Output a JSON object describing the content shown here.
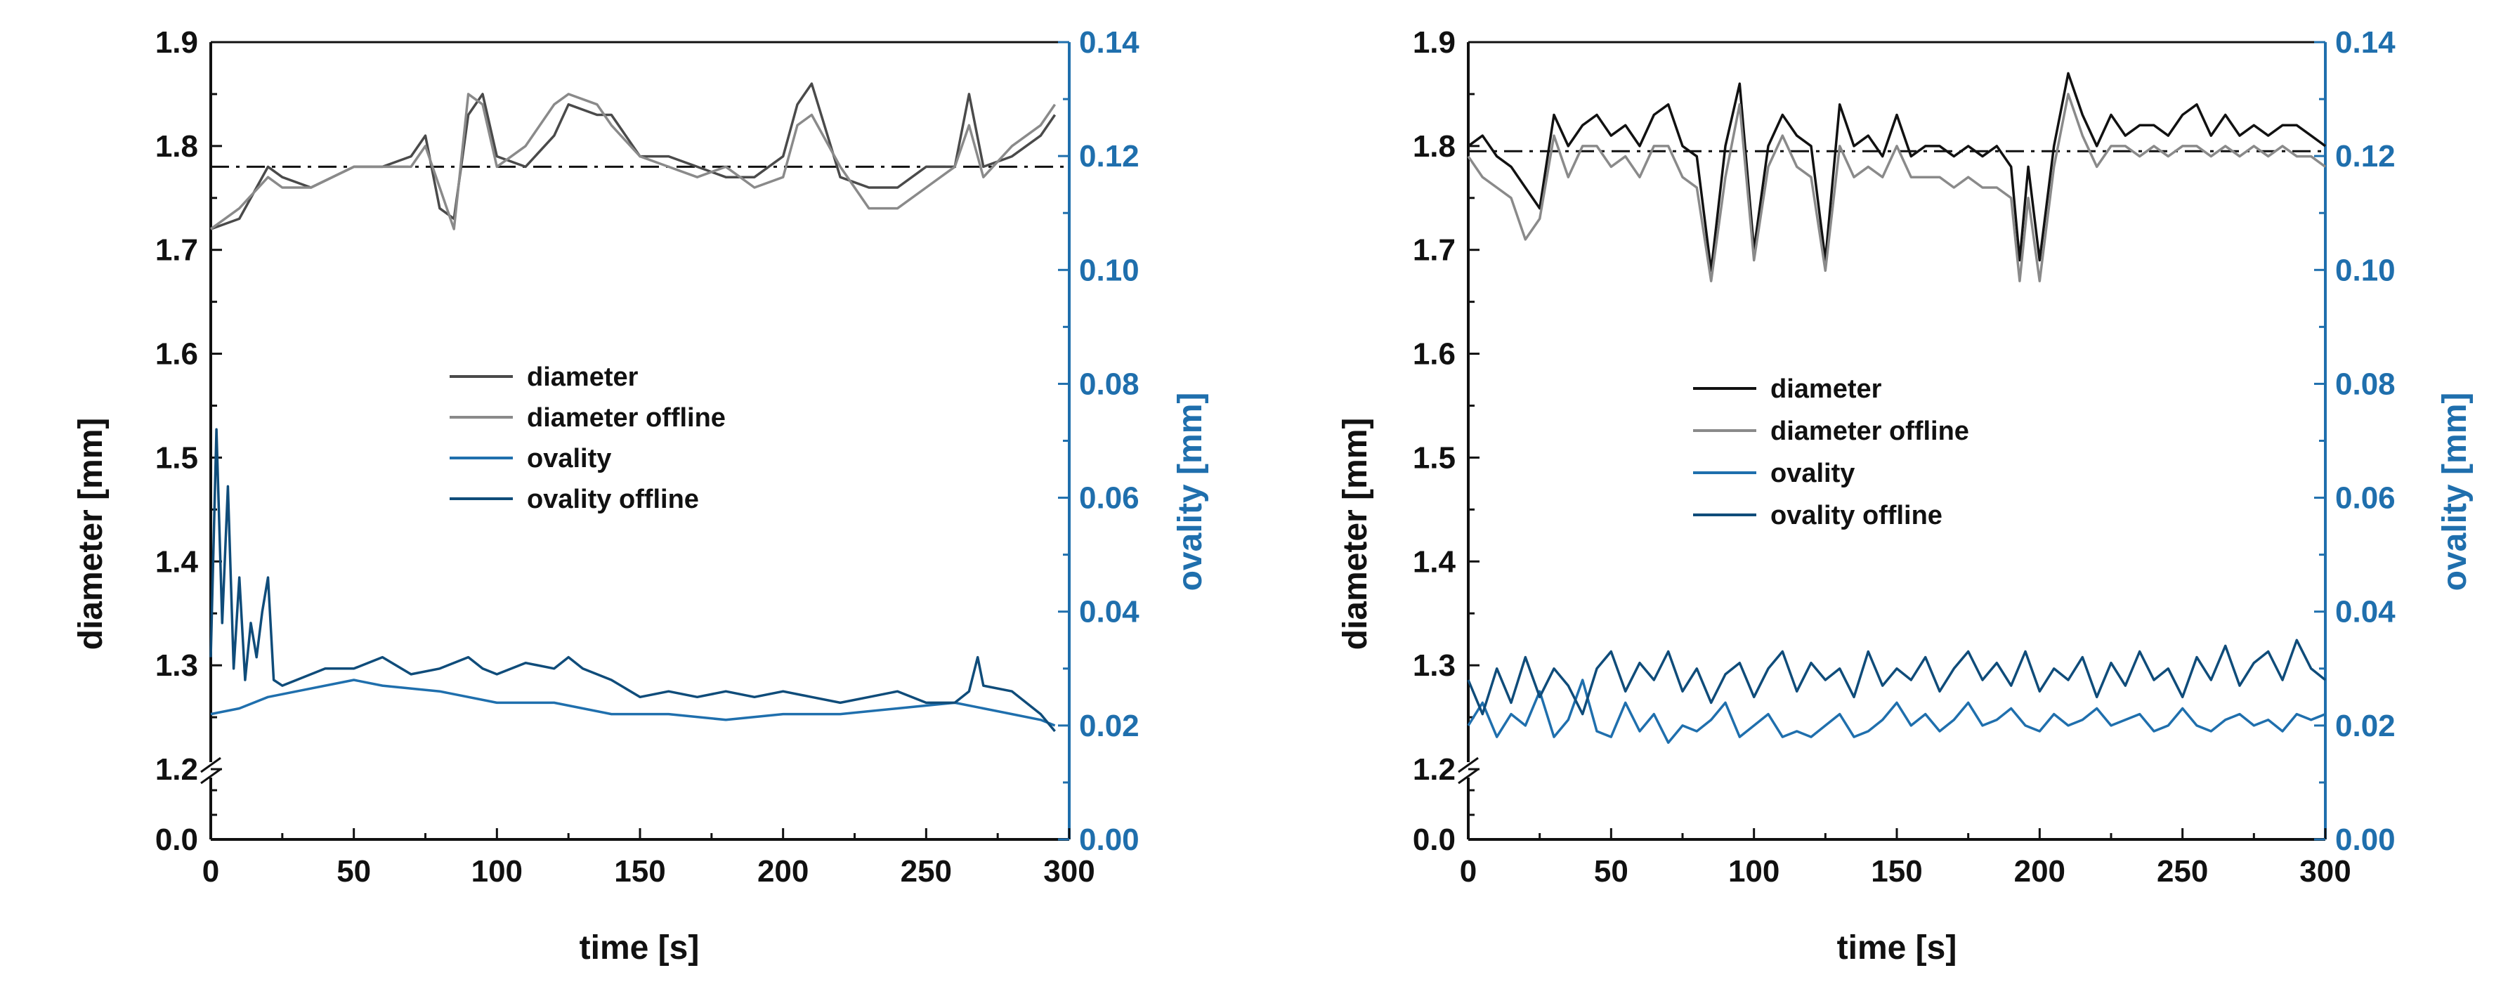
{
  "chart_data": [
    {
      "type": "line",
      "panel": "left",
      "xlabel": "time [s]",
      "ylabel": "diameter [mm]",
      "y2label": "ovality [mm]",
      "xlim": [
        0,
        300
      ],
      "xticks": [
        0,
        50,
        100,
        150,
        200,
        250,
        300
      ],
      "ylim_upper": [
        1.2,
        1.9
      ],
      "ylim_lower": [
        0,
        0.05
      ],
      "yticks": [
        "0.0",
        "1.2",
        "1.3",
        "1.4",
        "1.5",
        "1.6",
        "1.7",
        "1.8",
        "1.9"
      ],
      "y2lim": [
        0,
        0.14
      ],
      "y2ticks": [
        "0.00",
        "0.02",
        "0.04",
        "0.06",
        "0.08",
        "0.10",
        "0.12",
        "0.14"
      ],
      "reference_line": {
        "axis": "y",
        "value": 1.78,
        "style": "dash-dot"
      },
      "legend": [
        "diameter",
        "diameter offline",
        "ovality",
        "ovality offline"
      ],
      "legend_position": "center",
      "series": [
        {
          "name": "diameter",
          "axis": "left",
          "color": "#4a4a4a",
          "x": [
            0,
            10,
            20,
            25,
            35,
            50,
            60,
            70,
            75,
            80,
            85,
            90,
            95,
            100,
            110,
            120,
            125,
            135,
            140,
            150,
            160,
            170,
            180,
            190,
            200,
            205,
            210,
            220,
            230,
            240,
            250,
            260,
            265,
            270,
            280,
            290,
            295
          ],
          "y": [
            1.72,
            1.73,
            1.78,
            1.77,
            1.76,
            1.78,
            1.78,
            1.79,
            1.81,
            1.74,
            1.73,
            1.83,
            1.85,
            1.79,
            1.78,
            1.81,
            1.84,
            1.83,
            1.83,
            1.79,
            1.79,
            1.78,
            1.77,
            1.77,
            1.79,
            1.84,
            1.86,
            1.77,
            1.76,
            1.76,
            1.78,
            1.78,
            1.85,
            1.78,
            1.79,
            1.81,
            1.83
          ]
        },
        {
          "name": "diameter offline",
          "axis": "left",
          "color": "#8a8a8a",
          "x": [
            0,
            10,
            20,
            25,
            35,
            50,
            60,
            70,
            75,
            80,
            85,
            90,
            95,
            100,
            110,
            120,
            125,
            135,
            140,
            150,
            160,
            170,
            180,
            190,
            200,
            205,
            210,
            220,
            230,
            240,
            250,
            260,
            265,
            270,
            280,
            290,
            295
          ],
          "y": [
            1.72,
            1.74,
            1.77,
            1.76,
            1.76,
            1.78,
            1.78,
            1.78,
            1.8,
            1.76,
            1.72,
            1.85,
            1.84,
            1.78,
            1.8,
            1.84,
            1.85,
            1.84,
            1.82,
            1.79,
            1.78,
            1.77,
            1.78,
            1.76,
            1.77,
            1.82,
            1.83,
            1.78,
            1.74,
            1.74,
            1.76,
            1.78,
            1.82,
            1.77,
            1.8,
            1.82,
            1.84
          ]
        },
        {
          "name": "ovality",
          "axis": "right",
          "color": "#1f6fad",
          "x": [
            0,
            10,
            20,
            30,
            50,
            60,
            80,
            100,
            120,
            140,
            160,
            180,
            200,
            220,
            240,
            260,
            280,
            290,
            295
          ],
          "y": [
            0.022,
            0.023,
            0.025,
            0.026,
            0.028,
            0.027,
            0.026,
            0.024,
            0.024,
            0.022,
            0.022,
            0.021,
            0.022,
            0.022,
            0.023,
            0.024,
            0.022,
            0.021,
            0.02
          ]
        },
        {
          "name": "ovality offline",
          "axis": "right",
          "color": "#0f4c7a",
          "x": [
            0,
            2,
            4,
            6,
            8,
            10,
            12,
            14,
            16,
            18,
            20,
            22,
            25,
            30,
            40,
            50,
            60,
            70,
            80,
            90,
            95,
            100,
            110,
            120,
            125,
            130,
            140,
            150,
            160,
            170,
            180,
            190,
            200,
            210,
            220,
            230,
            240,
            250,
            260,
            265,
            268,
            270,
            280,
            290,
            295
          ],
          "y": [
            0.032,
            0.072,
            0.038,
            0.062,
            0.03,
            0.046,
            0.028,
            0.038,
            0.032,
            0.04,
            0.046,
            0.028,
            0.027,
            0.028,
            0.03,
            0.03,
            0.032,
            0.029,
            0.03,
            0.032,
            0.03,
            0.029,
            0.031,
            0.03,
            0.032,
            0.03,
            0.028,
            0.025,
            0.026,
            0.025,
            0.026,
            0.025,
            0.026,
            0.025,
            0.024,
            0.025,
            0.026,
            0.024,
            0.024,
            0.026,
            0.032,
            0.027,
            0.026,
            0.022,
            0.019
          ]
        }
      ]
    },
    {
      "type": "line",
      "panel": "right",
      "xlabel": "time [s]",
      "ylabel": "diameter [mm]",
      "y2label": "ovality [mm]",
      "xlim": [
        0,
        300
      ],
      "xticks": [
        0,
        50,
        100,
        150,
        200,
        250,
        300
      ],
      "ylim_upper": [
        1.2,
        1.9
      ],
      "ylim_lower": [
        0,
        0.05
      ],
      "yticks": [
        "0.0",
        "1.2",
        "1.3",
        "1.4",
        "1.5",
        "1.6",
        "1.7",
        "1.8",
        "1.9"
      ],
      "y2lim": [
        0,
        0.14
      ],
      "y2ticks": [
        "0.00",
        "0.02",
        "0.04",
        "0.06",
        "0.08",
        "0.10",
        "0.12",
        "0.14"
      ],
      "reference_line": {
        "axis": "y",
        "value": 1.795,
        "style": "dash-dot"
      },
      "legend": [
        "diameter",
        "diameter offline",
        "ovality",
        "ovality offline"
      ],
      "legend_position": "center",
      "series": [
        {
          "name": "diameter",
          "axis": "left",
          "color": "#111111",
          "x": [
            0,
            5,
            10,
            15,
            20,
            25,
            30,
            35,
            40,
            45,
            50,
            55,
            60,
            65,
            70,
            75,
            80,
            85,
            90,
            95,
            100,
            105,
            110,
            115,
            120,
            125,
            130,
            135,
            140,
            145,
            150,
            155,
            160,
            165,
            170,
            175,
            180,
            185,
            190,
            193,
            196,
            200,
            205,
            210,
            215,
            220,
            225,
            230,
            235,
            240,
            245,
            250,
            255,
            260,
            265,
            270,
            275,
            280,
            285,
            290,
            295,
            300
          ],
          "y": [
            1.8,
            1.81,
            1.79,
            1.78,
            1.76,
            1.74,
            1.83,
            1.8,
            1.82,
            1.83,
            1.81,
            1.82,
            1.8,
            1.83,
            1.84,
            1.8,
            1.79,
            1.68,
            1.8,
            1.86,
            1.7,
            1.8,
            1.83,
            1.81,
            1.8,
            1.69,
            1.84,
            1.8,
            1.81,
            1.79,
            1.83,
            1.79,
            1.8,
            1.8,
            1.79,
            1.8,
            1.79,
            1.8,
            1.78,
            1.69,
            1.78,
            1.69,
            1.8,
            1.87,
            1.83,
            1.8,
            1.83,
            1.81,
            1.82,
            1.82,
            1.81,
            1.83,
            1.84,
            1.81,
            1.83,
            1.81,
            1.82,
            1.81,
            1.82,
            1.82,
            1.81,
            1.8
          ]
        },
        {
          "name": "diameter offline",
          "axis": "left",
          "color": "#8a8a8a",
          "x": [
            0,
            5,
            10,
            15,
            20,
            25,
            30,
            35,
            40,
            45,
            50,
            55,
            60,
            65,
            70,
            75,
            80,
            85,
            90,
            95,
            100,
            105,
            110,
            115,
            120,
            125,
            130,
            135,
            140,
            145,
            150,
            155,
            160,
            165,
            170,
            175,
            180,
            185,
            190,
            193,
            196,
            200,
            205,
            210,
            215,
            220,
            225,
            230,
            235,
            240,
            245,
            250,
            255,
            260,
            265,
            270,
            275,
            280,
            285,
            290,
            295,
            300
          ],
          "y": [
            1.79,
            1.77,
            1.76,
            1.75,
            1.71,
            1.73,
            1.81,
            1.77,
            1.8,
            1.8,
            1.78,
            1.79,
            1.77,
            1.8,
            1.8,
            1.77,
            1.76,
            1.67,
            1.77,
            1.84,
            1.69,
            1.78,
            1.81,
            1.78,
            1.77,
            1.68,
            1.8,
            1.77,
            1.78,
            1.77,
            1.8,
            1.77,
            1.77,
            1.77,
            1.76,
            1.77,
            1.76,
            1.76,
            1.75,
            1.67,
            1.75,
            1.67,
            1.78,
            1.85,
            1.81,
            1.78,
            1.8,
            1.8,
            1.79,
            1.8,
            1.79,
            1.8,
            1.8,
            1.79,
            1.8,
            1.79,
            1.8,
            1.79,
            1.8,
            1.79,
            1.79,
            1.78
          ]
        },
        {
          "name": "ovality",
          "axis": "right",
          "color": "#1f6fad",
          "x": [
            0,
            5,
            10,
            15,
            20,
            25,
            30,
            35,
            40,
            45,
            50,
            55,
            60,
            65,
            70,
            75,
            80,
            85,
            90,
            95,
            100,
            105,
            110,
            115,
            120,
            125,
            130,
            135,
            140,
            145,
            150,
            155,
            160,
            165,
            170,
            175,
            180,
            185,
            190,
            195,
            200,
            205,
            210,
            215,
            220,
            225,
            230,
            235,
            240,
            245,
            250,
            255,
            260,
            265,
            270,
            275,
            280,
            285,
            290,
            295,
            300
          ],
          "y": [
            0.02,
            0.024,
            0.018,
            0.022,
            0.02,
            0.026,
            0.018,
            0.021,
            0.028,
            0.019,
            0.018,
            0.024,
            0.019,
            0.022,
            0.017,
            0.02,
            0.019,
            0.021,
            0.024,
            0.018,
            0.02,
            0.022,
            0.018,
            0.019,
            0.018,
            0.02,
            0.022,
            0.018,
            0.019,
            0.021,
            0.024,
            0.02,
            0.022,
            0.019,
            0.021,
            0.024,
            0.02,
            0.021,
            0.023,
            0.02,
            0.019,
            0.022,
            0.02,
            0.021,
            0.023,
            0.02,
            0.021,
            0.022,
            0.019,
            0.02,
            0.023,
            0.02,
            0.019,
            0.021,
            0.022,
            0.02,
            0.021,
            0.019,
            0.022,
            0.021,
            0.022
          ]
        },
        {
          "name": "ovality offline",
          "axis": "right",
          "color": "#0f4c7a",
          "x": [
            0,
            5,
            10,
            15,
            20,
            25,
            30,
            35,
            40,
            45,
            50,
            55,
            60,
            65,
            70,
            75,
            80,
            85,
            90,
            95,
            100,
            105,
            110,
            115,
            120,
            125,
            130,
            135,
            140,
            145,
            150,
            155,
            160,
            165,
            170,
            175,
            180,
            185,
            190,
            195,
            200,
            205,
            210,
            215,
            220,
            225,
            230,
            235,
            240,
            245,
            250,
            255,
            260,
            265,
            270,
            275,
            280,
            285,
            290,
            295,
            300
          ],
          "y": [
            0.028,
            0.022,
            0.03,
            0.024,
            0.032,
            0.025,
            0.03,
            0.027,
            0.022,
            0.03,
            0.033,
            0.026,
            0.031,
            0.028,
            0.033,
            0.026,
            0.03,
            0.024,
            0.029,
            0.031,
            0.025,
            0.03,
            0.033,
            0.026,
            0.031,
            0.028,
            0.03,
            0.025,
            0.033,
            0.027,
            0.03,
            0.028,
            0.032,
            0.026,
            0.03,
            0.033,
            0.028,
            0.031,
            0.027,
            0.033,
            0.026,
            0.03,
            0.028,
            0.032,
            0.025,
            0.031,
            0.027,
            0.033,
            0.028,
            0.03,
            0.025,
            0.032,
            0.028,
            0.034,
            0.027,
            0.031,
            0.033,
            0.028,
            0.035,
            0.03,
            0.028
          ]
        }
      ]
    }
  ]
}
